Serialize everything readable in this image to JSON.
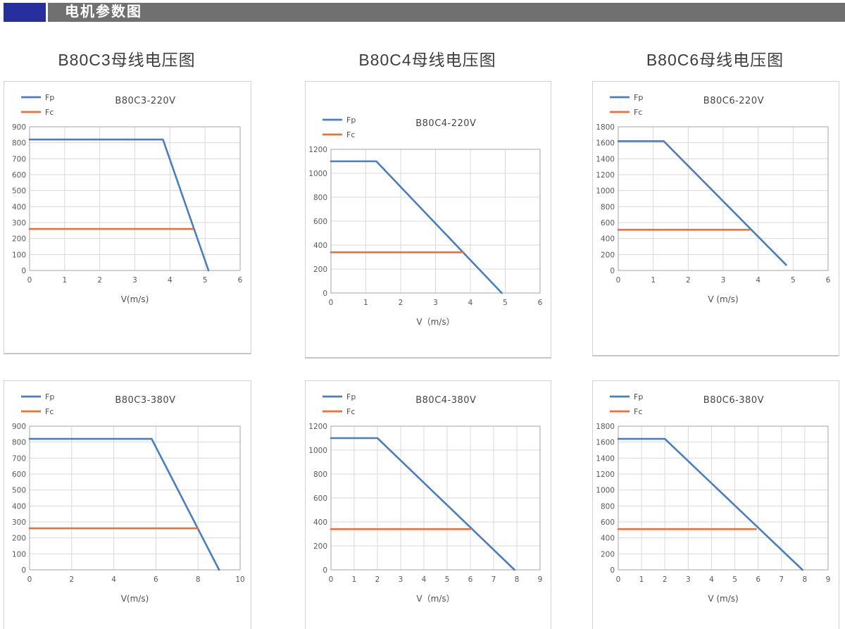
{
  "header": {
    "title": "电机参数图"
  },
  "columns": [
    {
      "title": "B80C3母线电压图"
    },
    {
      "title": "B80C4母线电压图"
    },
    {
      "title": "B80C6母线电压图"
    }
  ],
  "colors": {
    "fp": "#4a7ebc",
    "fc": "#e8703a",
    "grid": "#d9d9d9",
    "axis": "#a6a6a6",
    "header_bar": "#707070",
    "header_accent": "#272f9d",
    "panel_border": "#d2d2d2",
    "tick_text": "#595959"
  },
  "chart_data": [
    {
      "type": "line",
      "title": "B80C3-220V",
      "xlabel": "V(m/s)",
      "xlim": [
        0,
        6
      ],
      "xstep": 1,
      "ylim": [
        0,
        900
      ],
      "ystep": 100,
      "grid": true,
      "legend_position": "top-left",
      "layout": {
        "top_offset": 0
      },
      "series": [
        {
          "name": "Fp",
          "color_key": "fp",
          "points": [
            [
              0,
              820
            ],
            [
              3.8,
              820
            ],
            [
              5.1,
              0
            ]
          ]
        },
        {
          "name": "Fc",
          "color_key": "fc",
          "points": [
            [
              0,
              260
            ],
            [
              4.65,
              260
            ]
          ]
        }
      ]
    },
    {
      "type": "line",
      "title": "B80C4-220V",
      "xlabel": "V（m/s）",
      "xlim": [
        0,
        6
      ],
      "xstep": 1,
      "ylim": [
        0,
        1200
      ],
      "ystep": 200,
      "grid": true,
      "legend_position": "top-left",
      "layout": {
        "top_offset": 32
      },
      "series": [
        {
          "name": "Fp",
          "color_key": "fp",
          "points": [
            [
              0,
              1100
            ],
            [
              1.3,
              1100
            ],
            [
              4.9,
              0
            ]
          ]
        },
        {
          "name": "Fc",
          "color_key": "fc",
          "points": [
            [
              0,
              340
            ],
            [
              3.8,
              340
            ]
          ]
        }
      ]
    },
    {
      "type": "line",
      "title": "B80C6-220V",
      "xlabel": "V (m/s)",
      "xlim": [
        0,
        6
      ],
      "xstep": 1,
      "ylim": [
        0,
        1800
      ],
      "ystep": 200,
      "grid": true,
      "legend_position": "top-left",
      "layout": {
        "top_offset": 0
      },
      "series": [
        {
          "name": "Fp",
          "color_key": "fp",
          "points": [
            [
              0,
              1620
            ],
            [
              1.3,
              1620
            ],
            [
              4.8,
              70
            ]
          ]
        },
        {
          "name": "Fc",
          "color_key": "fc",
          "points": [
            [
              0,
              510
            ],
            [
              3.75,
              510
            ]
          ]
        }
      ]
    },
    {
      "type": "line",
      "title": "B80C3-380V",
      "xlabel": "V(m/s)",
      "xlim": [
        0,
        10
      ],
      "xstep": 2,
      "ylim": [
        0,
        900
      ],
      "ystep": 100,
      "grid": true,
      "legend_position": "top-left",
      "layout": {
        "top_offset": 0
      },
      "series": [
        {
          "name": "Fp",
          "color_key": "fp",
          "points": [
            [
              0,
              820
            ],
            [
              5.8,
              820
            ],
            [
              9,
              0
            ]
          ]
        },
        {
          "name": "Fc",
          "color_key": "fc",
          "points": [
            [
              0,
              260
            ],
            [
              8,
              260
            ]
          ]
        }
      ]
    },
    {
      "type": "line",
      "title": "B80C4-380V",
      "xlabel": "V（m/s）",
      "xlim": [
        0,
        9
      ],
      "xstep": 1,
      "ylim": [
        0,
        1200
      ],
      "ystep": 200,
      "grid": true,
      "legend_position": "top-left",
      "layout": {
        "top_offset": 0
      },
      "series": [
        {
          "name": "Fp",
          "color_key": "fp",
          "points": [
            [
              0,
              1100
            ],
            [
              2,
              1100
            ],
            [
              7.9,
              0
            ]
          ]
        },
        {
          "name": "Fc",
          "color_key": "fc",
          "points": [
            [
              0,
              340
            ],
            [
              6,
              340
            ]
          ]
        }
      ]
    },
    {
      "type": "line",
      "title": "B80C6-380V",
      "xlabel": "V (m/s)",
      "xlim": [
        0,
        9
      ],
      "xstep": 1,
      "ylim": [
        0,
        1800
      ],
      "ystep": 200,
      "grid": true,
      "legend_position": "top-left",
      "layout": {
        "top_offset": 0
      },
      "series": [
        {
          "name": "Fp",
          "color_key": "fp",
          "points": [
            [
              0,
              1640
            ],
            [
              2,
              1640
            ],
            [
              7.9,
              0
            ]
          ]
        },
        {
          "name": "Fc",
          "color_key": "fc",
          "points": [
            [
              0,
              510
            ],
            [
              5.9,
              510
            ]
          ]
        }
      ]
    }
  ]
}
